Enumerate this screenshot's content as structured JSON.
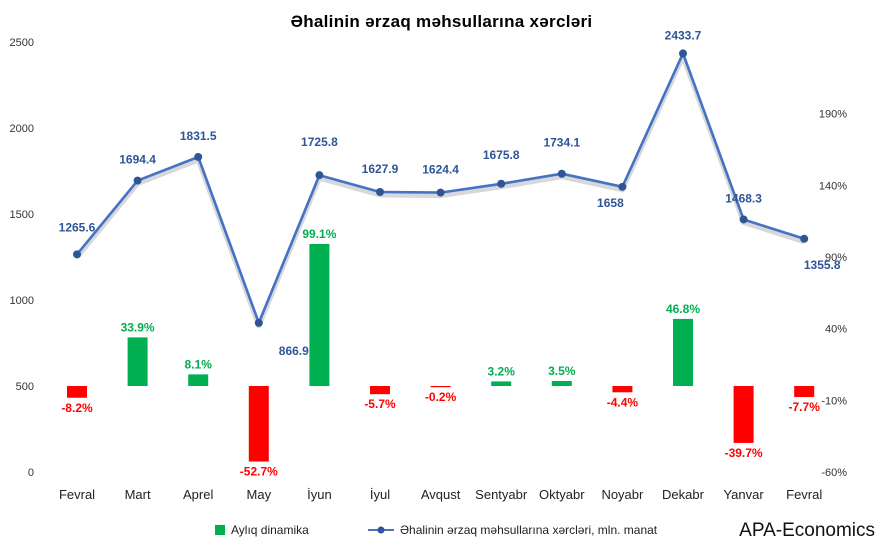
{
  "chart_data": {
    "type": "bar+line",
    "title": "Əhalinin ərzaq məhsullarına xərcləri",
    "categories": [
      "Fevral",
      "Mart",
      "Aprel",
      "May",
      "İyun",
      "İyul",
      "Avqust",
      "Sentyabr",
      "Oktyabr",
      "Noyabr",
      "Dekabr",
      "Yanvar",
      "Fevral"
    ],
    "series": [
      {
        "name": "Aylıq dinamika",
        "kind": "bar",
        "axis": "right",
        "values": [
          -8.2,
          33.9,
          8.1,
          -52.7,
          99.1,
          -5.7,
          -0.2,
          3.2,
          3.5,
          -4.4,
          46.8,
          -39.7,
          -7.7
        ],
        "labels": [
          "-8.2%",
          "33.9%",
          "8.1%",
          "-52.7%",
          "99.1%",
          "-5.7%",
          "-0.2%",
          "3.2%",
          "3.5%",
          "-4.4%",
          "46.8%",
          "-39.7%",
          "-7.7%"
        ],
        "positive_color": "#00b050",
        "negative_color": "#ff0000"
      },
      {
        "name": "Əhalinin ərzaq məhsullarına xərcləri, mln. manat",
        "kind": "line",
        "axis": "left",
        "values": [
          1265.6,
          1694.4,
          1831.5,
          866.9,
          1725.8,
          1627.9,
          1624.4,
          1675.8,
          1734.1,
          1658,
          2433.7,
          1468.3,
          1355.8
        ],
        "labels": [
          "1265.6",
          "1694.4",
          "1831.5",
          "866.9",
          "1725.8",
          "1627.9",
          "1624.4",
          "1675.8",
          "1734.1",
          "1658",
          "2433.7",
          "1468.3",
          "1355.8"
        ],
        "color": "#4472c4",
        "label_color": "#2f5597"
      }
    ],
    "left_axis": {
      "ylim": [
        0,
        2500
      ],
      "ticks": [
        0,
        500,
        1000,
        1500,
        2000,
        2500
      ]
    },
    "right_axis": {
      "ylim": [
        -60,
        240
      ],
      "ticks": [
        -60,
        -10,
        40,
        90,
        140,
        190
      ],
      "tick_labels": [
        "-60%",
        "-10%",
        "40%",
        "90%",
        "140%",
        "190%"
      ]
    },
    "grid": false,
    "legend_position": "bottom"
  },
  "brand": "APA-Economics"
}
